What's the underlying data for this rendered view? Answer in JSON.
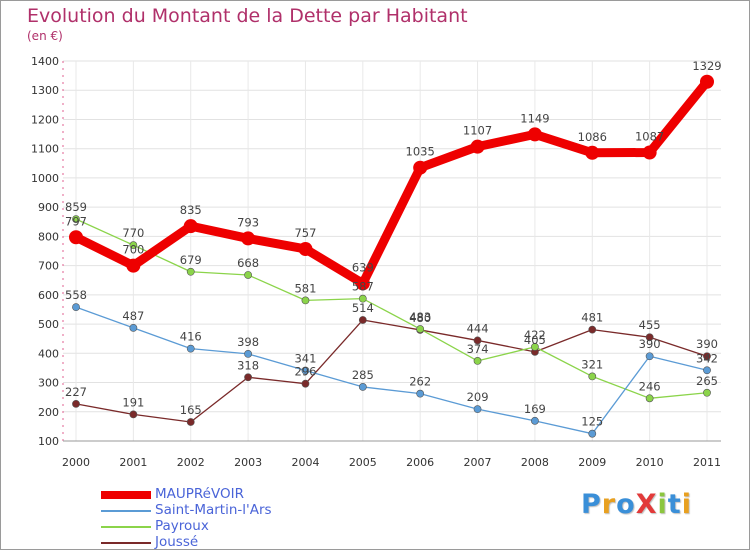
{
  "title": "Evolution du Montant de la Dette par Habitant",
  "subtitle": "(en €)",
  "logo": {
    "text": "ProXiti",
    "colors": [
      "#3a8fd8",
      "#e8a020",
      "#3a8fd8",
      "#e23a3a",
      "#8cc63f",
      "#3a8fd8",
      "#e8a020"
    ]
  },
  "chart_data": {
    "type": "line",
    "x": [
      "2000",
      "2001",
      "2002",
      "2003",
      "2004",
      "2005",
      "2006",
      "2007",
      "2008",
      "2009",
      "2010",
      "2011"
    ],
    "ylim": [
      100,
      1400
    ],
    "yticks": [
      "100",
      "200",
      "300",
      "400",
      "500",
      "600",
      "700",
      "800",
      "900",
      "1000",
      "1100",
      "1200",
      "1300",
      "1400"
    ],
    "grid": true,
    "legend_position": "bottom-left",
    "series": [
      {
        "name": "MAUPRéVOIR",
        "color": "#ee0000",
        "values": [
          797,
          700,
          835,
          793,
          757,
          639,
          1035,
          1107,
          1149,
          1086,
          1087,
          1329
        ],
        "labels": [
          "797",
          "700",
          "835",
          "793",
          "757",
          "639",
          "1035",
          "1107",
          "1149",
          "1086",
          "1087",
          "1329"
        ]
      },
      {
        "name": "Saint-Martin-l'Ars",
        "color": "#5b9bd5",
        "values": [
          558,
          487,
          416,
          398,
          341,
          285,
          262,
          209,
          169,
          125,
          390,
          342
        ],
        "labels": [
          "558",
          "487",
          "416",
          "398",
          "341",
          "285",
          "262",
          "209",
          "169",
          "125",
          "390",
          "342"
        ]
      },
      {
        "name": "Payroux",
        "color": "#8bd44a",
        "values": [
          859,
          770,
          679,
          668,
          581,
          587,
          483,
          374,
          422,
          321,
          246,
          265
        ],
        "labels": [
          "859",
          "770",
          "679",
          "668",
          "581",
          "587",
          "483",
          "374",
          "422",
          "321",
          "246",
          "265"
        ]
      },
      {
        "name": "Joussé",
        "color": "#7a2a2a",
        "values": [
          227,
          191,
          165,
          318,
          296,
          514,
          480,
          444,
          405,
          481,
          455,
          390
        ],
        "labels": [
          "227",
          "191",
          "165",
          "318",
          "296",
          "514",
          "480",
          "444",
          "405",
          "481",
          "455",
          "390"
        ]
      }
    ]
  }
}
